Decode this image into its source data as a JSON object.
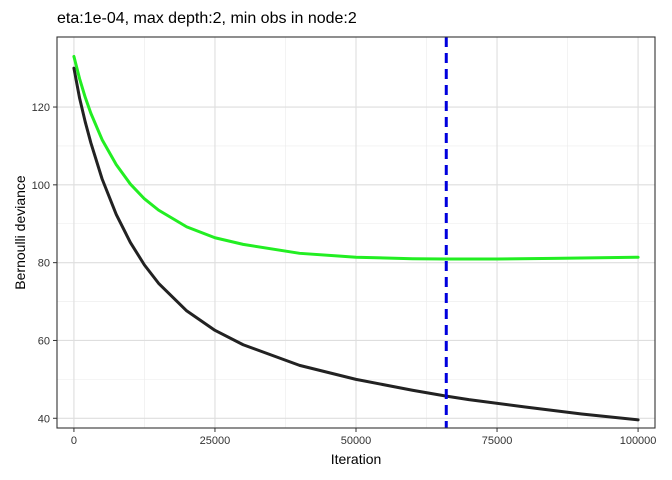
{
  "chart_data": {
    "type": "line",
    "title": "eta:1e-04, max depth:2, min obs in node:2",
    "xlabel": "Iteration",
    "ylabel": "Bernoulli deviance",
    "xlim": [
      -3000,
      103000
    ],
    "ylim": [
      37.5,
      138
    ],
    "x_ticks": [
      0,
      25000,
      50000,
      75000,
      100000
    ],
    "x_tick_labels": [
      "0",
      "25000",
      "50000",
      "75000",
      "100000"
    ],
    "y_ticks": [
      40,
      60,
      80,
      100,
      120
    ],
    "y_tick_labels": [
      "40",
      "60",
      "80",
      "100",
      "120"
    ],
    "grid": true,
    "series": [
      {
        "color": "#22ee22",
        "x": [
          0,
          1000,
          2000,
          3000,
          5000,
          7500,
          10000,
          12500,
          15000,
          20000,
          25000,
          30000,
          40000,
          50000,
          60000,
          66000,
          75000,
          85000,
          100000
        ],
        "values": [
          133,
          127.3,
          122.5,
          118.4,
          111.6,
          105.2,
          100.2,
          96.4,
          93.5,
          89.2,
          86.4,
          84.7,
          82.4,
          81.4,
          81.0,
          80.95,
          80.95,
          81.1,
          81.4
        ]
      },
      {
        "color": "#222222",
        "x": [
          0,
          1000,
          2000,
          3000,
          5000,
          7500,
          10000,
          12500,
          15000,
          20000,
          25000,
          30000,
          40000,
          50000,
          60000,
          66000,
          70000,
          80000,
          90000,
          100000
        ],
        "values": [
          130,
          122.3,
          116.2,
          110.8,
          101.5,
          92.4,
          85.2,
          79.4,
          74.7,
          67.6,
          62.6,
          58.9,
          53.6,
          50.0,
          47.2,
          45.7,
          44.8,
          42.9,
          41.1,
          39.6
        ]
      }
    ],
    "vline": {
      "x": 66000,
      "color": "#0000dd",
      "style": "dashed"
    }
  }
}
